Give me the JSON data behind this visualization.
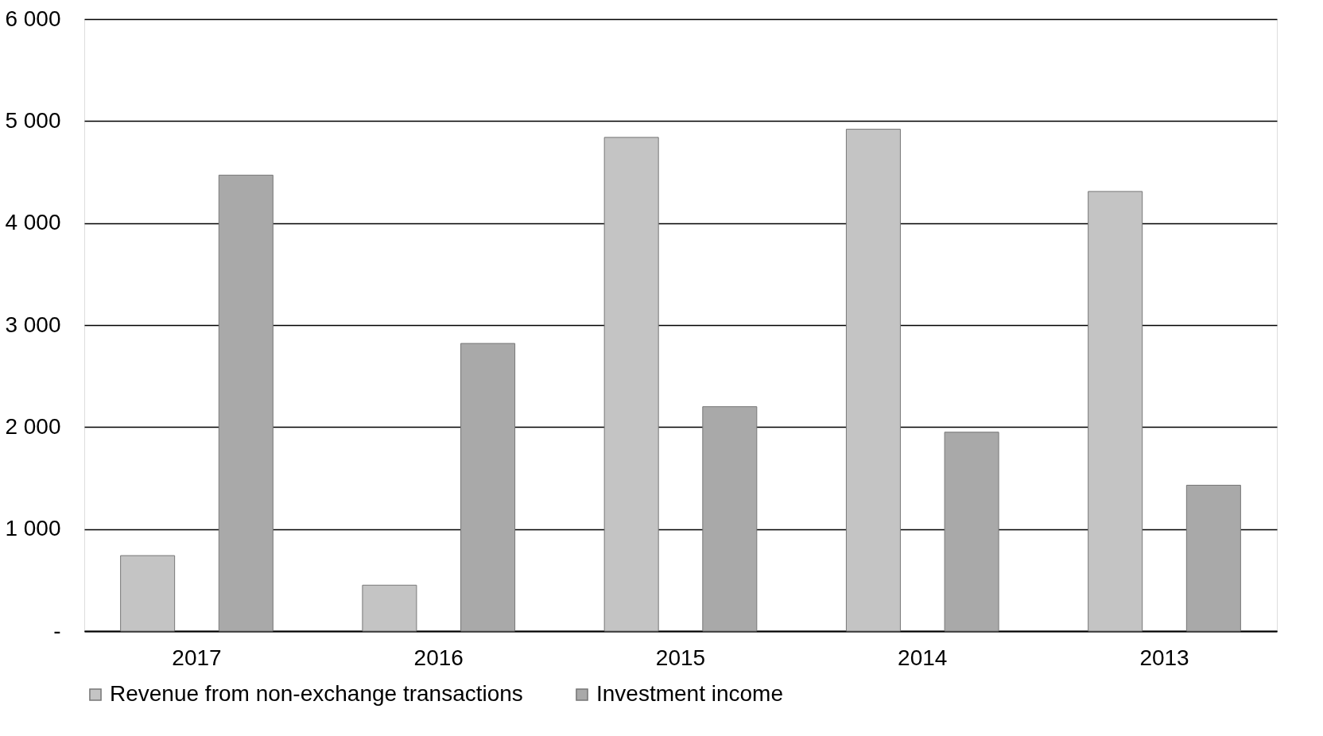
{
  "chart_data": {
    "type": "bar",
    "categories": [
      "2017",
      "2016",
      "2015",
      "2014",
      "2013"
    ],
    "series": [
      {
        "name": "Revenue from non-exchange transactions",
        "color": "#c4c4c4",
        "values": [
          740,
          450,
          4840,
          4920,
          4310
        ]
      },
      {
        "name": "Investment income",
        "color": "#a9a9a9",
        "values": [
          4470,
          2820,
          2200,
          1950,
          1430
        ]
      }
    ],
    "ylim": [
      0,
      6000
    ],
    "yticks": [
      {
        "value": 0,
        "label": "-"
      },
      {
        "value": 1000,
        "label": "1 000"
      },
      {
        "value": 2000,
        "label": "2 000"
      },
      {
        "value": 3000,
        "label": "3 000"
      },
      {
        "value": 4000,
        "label": "4 000"
      },
      {
        "value": 5000,
        "label": "5 000"
      },
      {
        "value": 6000,
        "label": "6 000"
      }
    ],
    "grid": "y",
    "legend": "bottom"
  }
}
